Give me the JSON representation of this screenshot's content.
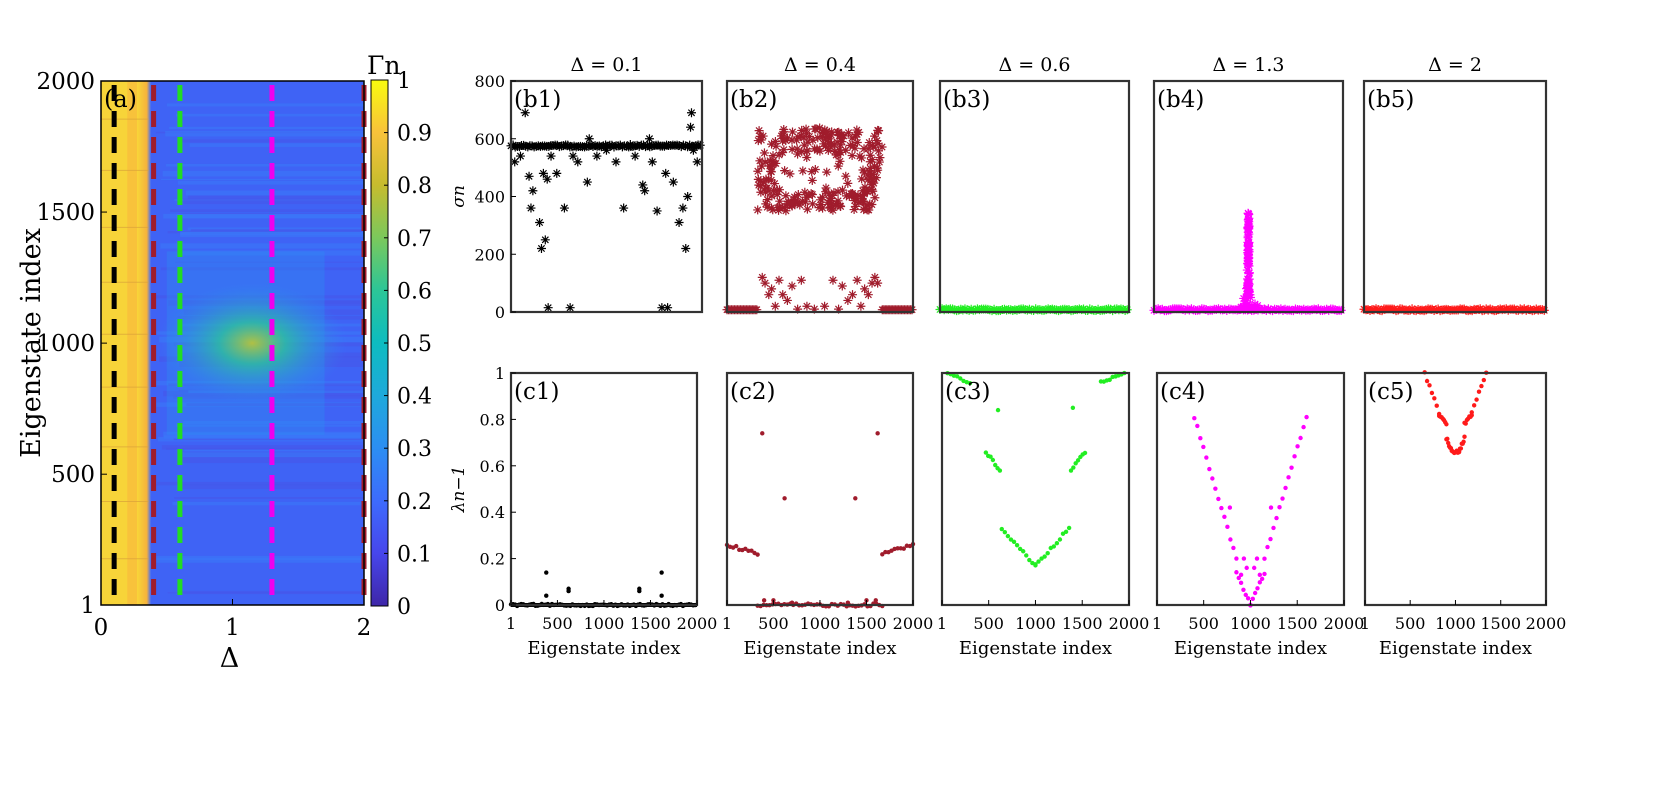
{
  "chart_data": [
    {
      "panel_label": "(a)",
      "type": "heatmap",
      "xlabel": "Δ",
      "ylabel": "Eigenstate index",
      "xlim": [
        0,
        2
      ],
      "ylim": [
        1,
        2000
      ],
      "xticks": [
        "0",
        "1",
        "2"
      ],
      "yticks": [
        "1",
        "500",
        "1000",
        "1500",
        "2000"
      ],
      "colorbar": {
        "label": "Γn",
        "range": [
          0,
          1
        ],
        "ticks": [
          "0",
          "0.1",
          "0.2",
          "0.3",
          "0.4",
          "0.5",
          "0.6",
          "0.7",
          "0.8",
          "0.9",
          "1"
        ]
      },
      "regions": [
        {
          "delta_range": [
            0,
            0.38
          ],
          "value": 0.93
        },
        {
          "delta_range": [
            0.38,
            2
          ],
          "value": 0.22
        }
      ],
      "hotspot": {
        "delta_center": 1.3,
        "eigenstate_center": 1000,
        "value": 0.55
      },
      "cuts": [
        {
          "delta": 0.1,
          "color": "#000000"
        },
        {
          "delta": 0.4,
          "color": "#a01c2c"
        },
        {
          "delta": 0.6,
          "color": "#22dd22"
        },
        {
          "delta": 1.3,
          "color": "#ee00ee"
        },
        {
          "delta": 2,
          "color": "#a01c2c"
        }
      ]
    },
    {
      "panel_label": "(b1)",
      "title": "Δ = 0.1",
      "type": "scatter",
      "marker": "*",
      "color": "#000000",
      "ylabel": "σn",
      "ylim": [
        0,
        800
      ],
      "yticks": [
        "0",
        "200",
        "400",
        "600",
        "800"
      ],
      "band": {
        "x": [
          1,
          2000
        ],
        "y": 575
      },
      "points": [
        [
          40,
          520
        ],
        [
          100,
          540
        ],
        [
          150,
          690
        ],
        [
          190,
          470
        ],
        [
          210,
          360
        ],
        [
          230,
          420
        ],
        [
          300,
          310
        ],
        [
          320,
          220
        ],
        [
          340,
          480
        ],
        [
          360,
          250
        ],
        [
          380,
          460
        ],
        [
          390,
          15
        ],
        [
          420,
          540
        ],
        [
          480,
          480
        ],
        [
          560,
          360
        ],
        [
          620,
          15
        ],
        [
          650,
          540
        ],
        [
          700,
          520
        ],
        [
          800,
          450
        ],
        [
          820,
          600
        ],
        [
          900,
          540
        ],
        [
          1000,
          560
        ],
        [
          1100,
          520
        ],
        [
          1180,
          360
        ],
        [
          1250,
          580
        ],
        [
          1300,
          540
        ],
        [
          1380,
          440
        ],
        [
          1400,
          420
        ],
        [
          1450,
          600
        ],
        [
          1480,
          520
        ],
        [
          1530,
          350
        ],
        [
          1580,
          15
        ],
        [
          1620,
          480
        ],
        [
          1640,
          15
        ],
        [
          1700,
          450
        ],
        [
          1760,
          310
        ],
        [
          1800,
          360
        ],
        [
          1830,
          220
        ],
        [
          1850,
          400
        ],
        [
          1880,
          640
        ],
        [
          1890,
          690
        ],
        [
          1910,
          560
        ],
        [
          1950,
          520
        ]
      ]
    },
    {
      "panel_label": "(b2)",
      "title": "Δ = 0.4",
      "type": "scatter",
      "marker": "*",
      "color": "#a01c2c",
      "ylim": [
        0,
        800
      ],
      "baseline": [
        [
          1,
          330,
          8
        ],
        [
          1670,
          2000,
          8
        ]
      ],
      "cloud": {
        "x": [
          330,
          1670
        ],
        "y": [
          350,
          640
        ],
        "n": 260
      },
      "points": [
        [
          420,
          460
        ],
        [
          450,
          460
        ],
        [
          500,
          420
        ],
        [
          540,
          420
        ],
        [
          1460,
          420
        ],
        [
          1500,
          420
        ],
        [
          1550,
          460
        ],
        [
          1580,
          460
        ],
        [
          380,
          120
        ],
        [
          410,
          100
        ],
        [
          450,
          60
        ],
        [
          480,
          80
        ],
        [
          520,
          20
        ],
        [
          560,
          110
        ],
        [
          600,
          60
        ],
        [
          650,
          40
        ],
        [
          700,
          90
        ],
        [
          760,
          10
        ],
        [
          800,
          110
        ],
        [
          860,
          20
        ],
        [
          940,
          10
        ],
        [
          1050,
          20
        ],
        [
          1140,
          110
        ],
        [
          1200,
          10
        ],
        [
          1240,
          90
        ],
        [
          1300,
          40
        ],
        [
          1350,
          60
        ],
        [
          1400,
          110
        ],
        [
          1440,
          20
        ],
        [
          1480,
          80
        ],
        [
          1520,
          60
        ],
        [
          1560,
          100
        ],
        [
          1590,
          120
        ],
        [
          1620,
          100
        ]
      ]
    },
    {
      "panel_label": "(b3)",
      "title": "Δ = 0.6",
      "type": "scatter",
      "marker": "*",
      "color": "#22ee22",
      "ylim": [
        0,
        800
      ],
      "band": {
        "x": [
          1,
          2000
        ],
        "y": 8
      }
    },
    {
      "panel_label": "(b4)",
      "title": "Δ = 1.3",
      "type": "scatter",
      "marker": "*",
      "color": "#ff00ff",
      "ylim": [
        0,
        800
      ],
      "band": {
        "x": [
          1,
          2000
        ],
        "y": 8
      },
      "peak": {
        "x_center": 1000,
        "height": 340
      }
    },
    {
      "panel_label": "(b5)",
      "title": "Δ = 2",
      "type": "scatter",
      "marker": "*",
      "color": "#ff1a1a",
      "ylim": [
        0,
        800
      ],
      "band": {
        "x": [
          1,
          2000
        ],
        "y": 8
      }
    },
    {
      "panel_label": "(c1)",
      "type": "scatter",
      "marker": ".",
      "color": "#000000",
      "ylabel": "λn−1",
      "xlabel": "Eigenstate index",
      "ylim": [
        0,
        1
      ],
      "yticks": [
        "0",
        "0.2",
        "0.4",
        "0.6",
        "0.8",
        "1"
      ],
      "xticks": [
        "1",
        "500",
        "1000",
        "1500",
        "2000"
      ],
      "band": {
        "x": [
          1,
          2000
        ],
        "y": 0.0
      },
      "points": [
        [
          380,
          0.14
        ],
        [
          380,
          0.04
        ],
        [
          620,
          0.07
        ],
        [
          620,
          0.06
        ],
        [
          1380,
          0.07
        ],
        [
          1380,
          0.06
        ],
        [
          1620,
          0.14
        ],
        [
          1620,
          0.04
        ]
      ]
    },
    {
      "panel_label": "(c2)",
      "type": "scatter",
      "marker": ".",
      "color": "#a01c2c",
      "xlabel": "Eigenstate index",
      "ylim": [
        0,
        1
      ],
      "xticks": [
        "1",
        "500",
        "1000",
        "1500",
        "2000"
      ],
      "segments": [
        {
          "x": [
            1,
            330
          ],
          "y": [
            0.26,
            0.22
          ]
        },
        {
          "x": [
            1670,
            2000
          ],
          "y": [
            0.22,
            0.26
          ]
        },
        {
          "x": [
            330,
            1670
          ],
          "y": [
            0.0,
            0.0
          ]
        }
      ],
      "points": [
        [
          380,
          0.74
        ],
        [
          620,
          0.46
        ],
        [
          1380,
          0.46
        ],
        [
          1620,
          0.74
        ],
        [
          400,
          0.02
        ],
        [
          500,
          0.02
        ],
        [
          700,
          0.01
        ],
        [
          1300,
          0.01
        ],
        [
          1500,
          0.02
        ],
        [
          1600,
          0.02
        ]
      ]
    },
    {
      "panel_label": "(c3)",
      "type": "scatter",
      "marker": ".",
      "color": "#22ee22",
      "xlabel": "Eigenstate index",
      "ylim": [
        0,
        1
      ],
      "xticks": [
        "1",
        "500",
        "1000",
        "1500",
        "2000"
      ],
      "segments": [
        {
          "x": [
            60,
            300
          ],
          "y": [
            1.0,
            0.96
          ]
        },
        {
          "x": [
            1700,
            1950
          ],
          "y": [
            0.96,
            1.0
          ]
        },
        {
          "x": [
            470,
            620
          ],
          "y": [
            0.66,
            0.58
          ]
        },
        {
          "x": [
            1380,
            1530
          ],
          "y": [
            0.58,
            0.66
          ]
        },
        {
          "x": [
            640,
            1000
          ],
          "y": [
            0.33,
            0.17
          ]
        },
        {
          "x": [
            1000,
            1360
          ],
          "y": [
            0.17,
            0.33
          ]
        }
      ],
      "points": [
        [
          600,
          0.84
        ],
        [
          1400,
          0.85
        ]
      ]
    },
    {
      "panel_label": "(c4)",
      "type": "scatter",
      "marker": ".",
      "color": "#ff00ff",
      "xlabel": "Eigenstate index",
      "ylim": [
        0,
        1
      ],
      "xticks": [
        "1",
        "500",
        "1000",
        "1500",
        "2000"
      ],
      "segments": [
        {
          "x": [
            400,
            850
          ],
          "y": [
            0.81,
            0.2
          ]
        },
        {
          "x": [
            1150,
            1600
          ],
          "y": [
            0.2,
            0.81
          ]
        },
        {
          "x": [
            850,
            1000
          ],
          "y": [
            0.14,
            0.0
          ]
        },
        {
          "x": [
            1000,
            1150
          ],
          "y": [
            0.0,
            0.14
          ]
        }
      ],
      "points": [
        [
          780,
          0.42
        ],
        [
          1220,
          0.42
        ],
        [
          930,
          0.2
        ],
        [
          1070,
          0.2
        ],
        [
          960,
          0.16
        ],
        [
          1040,
          0.16
        ],
        [
          900,
          0.13
        ],
        [
          1100,
          0.13
        ]
      ]
    },
    {
      "panel_label": "(c5)",
      "type": "scatter",
      "marker": ".",
      "color": "#ff1a1a",
      "xlabel": "Eigenstate index",
      "ylim": [
        0,
        1
      ],
      "xticks": [
        "1",
        "500",
        "1000",
        "1500",
        "2000"
      ],
      "segments": [
        {
          "x": [
            660,
            820
          ],
          "y": [
            1.0,
            0.83
          ]
        },
        {
          "x": [
            820,
            900
          ],
          "y": [
            0.82,
            0.78
          ]
        },
        {
          "x": [
            900,
            960
          ],
          "y": [
            0.72,
            0.66
          ]
        },
        {
          "x": [
            960,
            1040
          ],
          "y": [
            0.66,
            0.66
          ]
        },
        {
          "x": [
            1040,
            1100
          ],
          "y": [
            0.66,
            0.72
          ]
        },
        {
          "x": [
            1100,
            1180
          ],
          "y": [
            0.78,
            0.82
          ]
        },
        {
          "x": [
            1180,
            1340
          ],
          "y": [
            0.83,
            1.0
          ]
        }
      ]
    }
  ]
}
